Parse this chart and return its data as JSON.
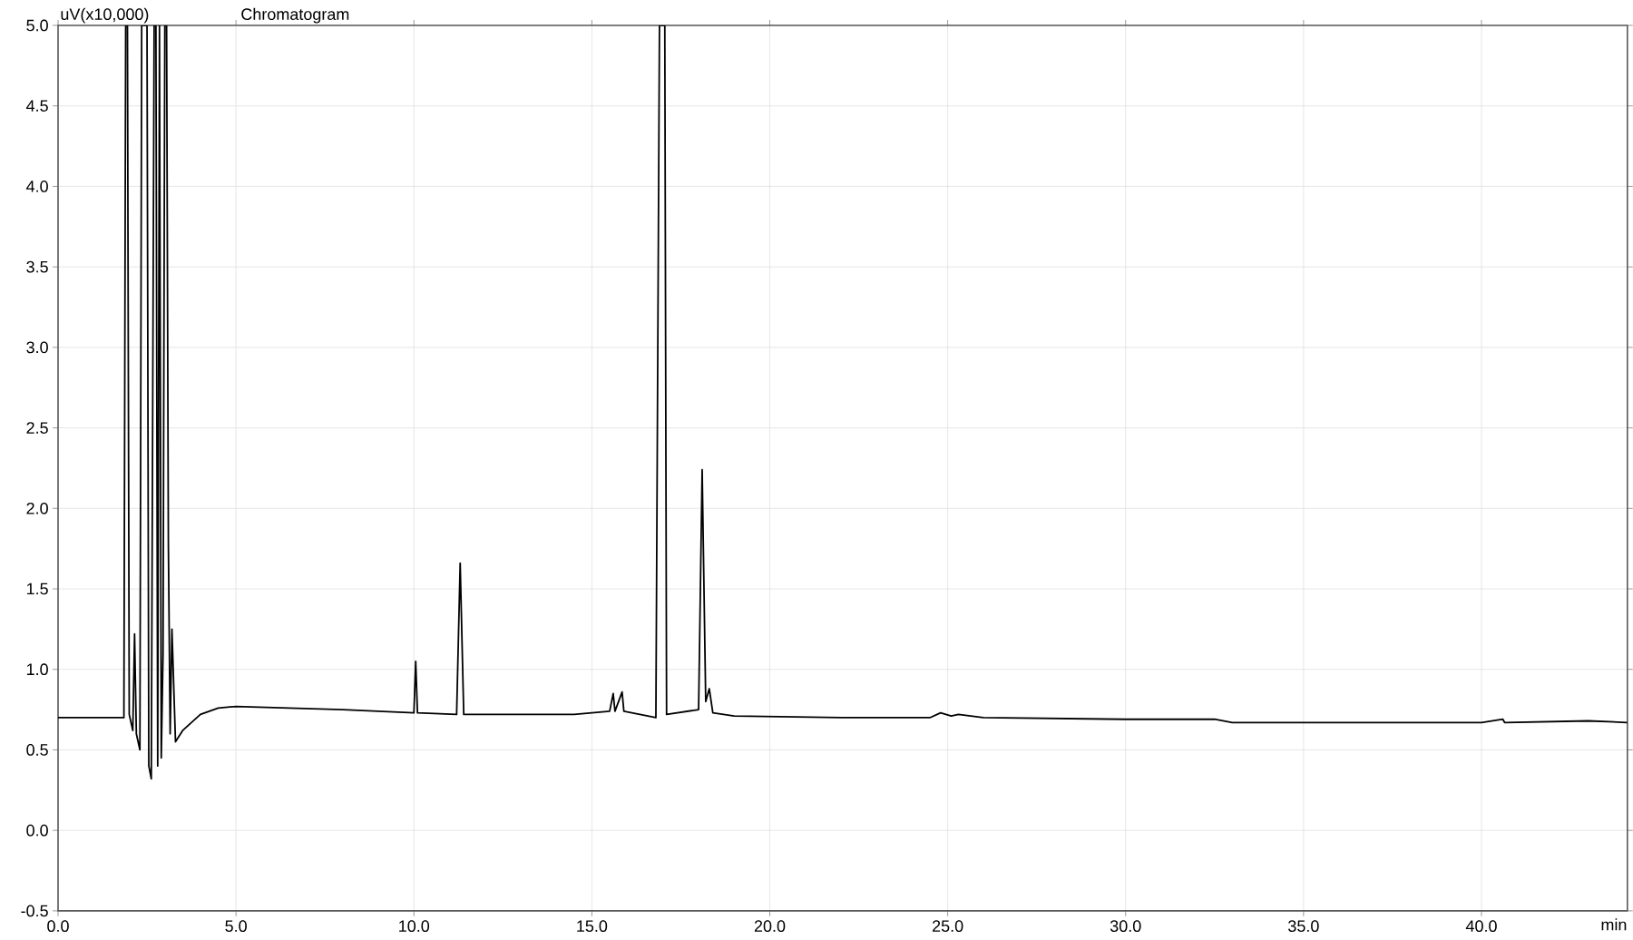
{
  "chart_data": {
    "type": "line",
    "title": "Chromatogram",
    "xlabel": "min",
    "ylabel": "uV(x10,000)",
    "x": [
      0,
      1.85,
      1.9,
      1.95,
      2.0,
      2.1,
      2.15,
      2.2,
      2.3,
      2.35,
      2.45,
      2.5,
      2.55,
      2.62,
      2.7,
      2.75,
      2.8,
      2.85,
      2.9,
      2.95,
      3.0,
      3.05,
      3.1,
      3.15,
      3.2,
      3.3,
      3.5,
      4.0,
      4.5,
      5.0,
      8.0,
      10.0,
      10.05,
      10.1,
      11.2,
      11.3,
      11.4,
      14.5,
      15.5,
      15.6,
      15.65,
      15.85,
      15.9,
      16.8,
      16.9,
      17.05,
      17.1,
      18.0,
      18.1,
      18.2,
      18.3,
      18.4,
      19.0,
      22.0,
      24.5,
      24.8,
      25.1,
      25.3,
      26.0,
      30.0,
      32.5,
      33.0,
      40.0,
      40.6,
      40.65,
      43.0,
      44.1
    ],
    "series": [
      {
        "color": "#000000",
        "values": [
          0.7,
          0.7,
          5.0,
          5.0,
          0.72,
          0.62,
          1.22,
          0.6,
          0.5,
          5.0,
          5.0,
          5.0,
          0.4,
          0.32,
          5.0,
          5.0,
          0.4,
          5.0,
          0.45,
          1.1,
          5.0,
          5.0,
          1.78,
          0.6,
          1.25,
          0.55,
          0.62,
          0.72,
          0.76,
          0.77,
          0.75,
          0.73,
          1.05,
          0.73,
          0.72,
          1.66,
          0.72,
          0.72,
          0.74,
          0.85,
          0.74,
          0.86,
          0.74,
          0.7,
          5.0,
          5.0,
          0.72,
          0.75,
          2.24,
          0.8,
          0.88,
          0.73,
          0.71,
          0.7,
          0.7,
          0.73,
          0.71,
          0.72,
          0.7,
          0.69,
          0.69,
          0.67,
          0.67,
          0.69,
          0.67,
          0.68,
          0.67
        ]
      }
    ],
    "xlim": [
      0,
      44.1
    ],
    "ylim": [
      -0.5,
      5.0
    ],
    "xticks": [
      {
        "value": 0,
        "label": "0.0"
      },
      {
        "value": 5,
        "label": "5.0"
      },
      {
        "value": 10,
        "label": "10.0"
      },
      {
        "value": 15,
        "label": "15.0"
      },
      {
        "value": 20,
        "label": "20.0"
      },
      {
        "value": 25,
        "label": "25.0"
      },
      {
        "value": 30,
        "label": "30.0"
      },
      {
        "value": 35,
        "label": "35.0"
      },
      {
        "value": 40,
        "label": "40.0"
      }
    ],
    "yticks": [
      {
        "value": -0.5,
        "label": "-0.5"
      },
      {
        "value": 0,
        "label": "0.0"
      },
      {
        "value": 0.5,
        "label": "0.5"
      },
      {
        "value": 1,
        "label": "1.0"
      },
      {
        "value": 1.5,
        "label": "1.5"
      },
      {
        "value": 2,
        "label": "2.0"
      },
      {
        "value": 2.5,
        "label": "2.5"
      },
      {
        "value": 3,
        "label": "3.0"
      },
      {
        "value": 3.5,
        "label": "3.5"
      },
      {
        "value": 4,
        "label": "4.0"
      },
      {
        "value": 4.5,
        "label": "4.5"
      },
      {
        "value": 5,
        "label": "5.0"
      }
    ],
    "grid": true,
    "marker": "none",
    "line_style": "solid"
  }
}
